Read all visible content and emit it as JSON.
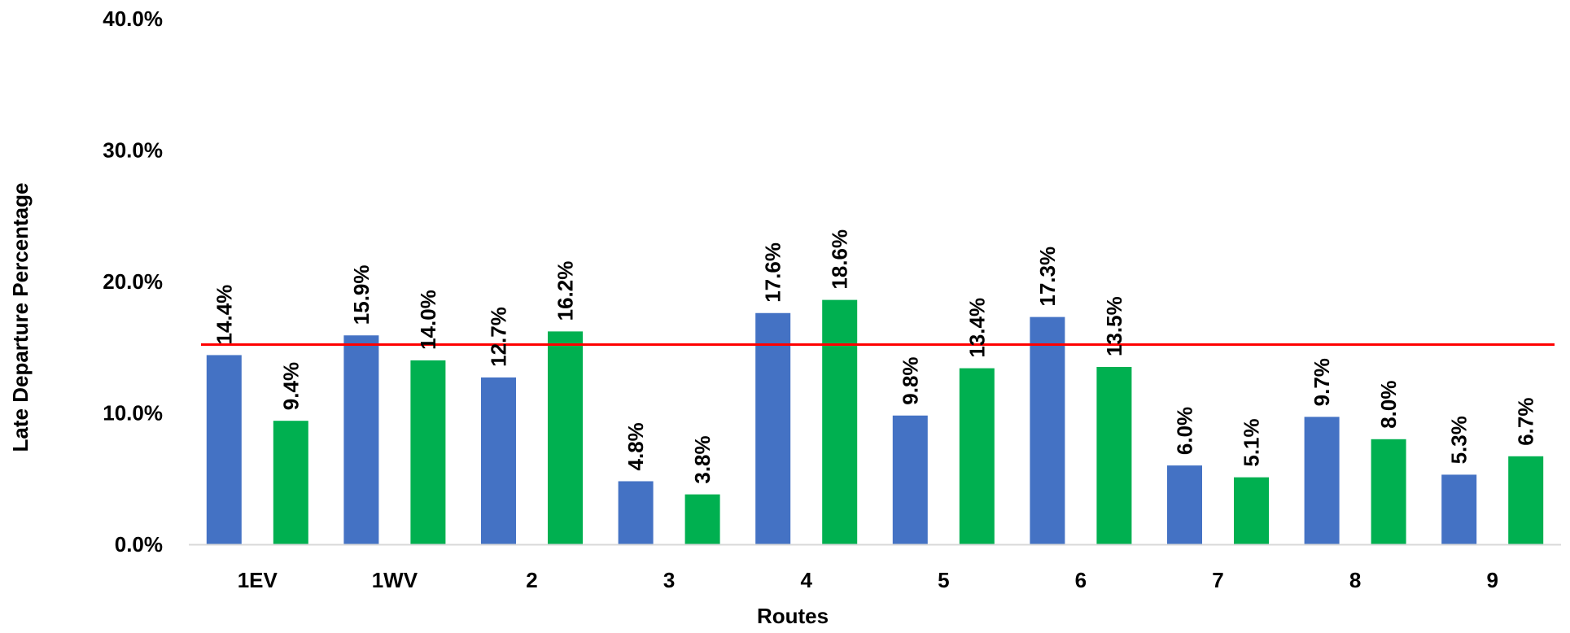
{
  "chart_data": {
    "type": "bar",
    "title": "",
    "xlabel": "Routes",
    "ylabel": "Late Departure Percentage",
    "ylim": [
      0,
      40
    ],
    "y_ticks": [
      "0.0%",
      "10.0%",
      "20.0%",
      "30.0%",
      "40.0%"
    ],
    "y_tick_values": [
      0,
      10,
      20,
      30,
      40
    ],
    "grid": false,
    "legend": "none",
    "categories": [
      "1EV",
      "1WV",
      "2",
      "3",
      "4",
      "5",
      "6",
      "7",
      "8",
      "9"
    ],
    "series": [
      {
        "color": "#4472C4",
        "values": [
          14.4,
          15.9,
          12.7,
          4.8,
          17.6,
          9.8,
          17.3,
          6.0,
          9.7,
          5.3
        ],
        "labels": [
          "14.4%",
          "15.9%",
          "12.7%",
          "4.8%",
          "17.6%",
          "9.8%",
          "17.3%",
          "6.0%",
          "9.7%",
          "5.3%"
        ]
      },
      {
        "color": "#00B050",
        "values": [
          9.4,
          14.0,
          16.2,
          3.8,
          18.6,
          13.4,
          13.5,
          5.1,
          8.0,
          6.7
        ],
        "labels": [
          "9.4%",
          "14.0%",
          "16.2%",
          "3.8%",
          "18.6%",
          "13.4%",
          "13.5%",
          "5.1%",
          "8.0%",
          "6.7%"
        ]
      }
    ],
    "reference_line": {
      "value": 15.2,
      "color": "#FF0000"
    },
    "axis_line_color": "#D9D9D9"
  }
}
